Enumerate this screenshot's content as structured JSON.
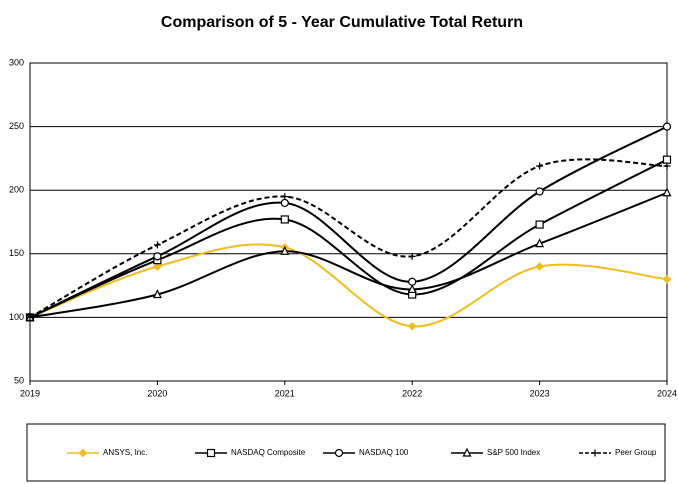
{
  "chart_data": {
    "type": "line",
    "title": "Comparison of 5 - Year Cumulative Total Return",
    "x": [
      2019,
      2020,
      2021,
      2022,
      2023,
      2024
    ],
    "xlim": [
      2019,
      2024
    ],
    "xticks": [
      2019,
      2020,
      2021,
      2022,
      2023,
      2024
    ],
    "ylim": [
      50,
      300
    ],
    "yticks": [
      50,
      100,
      150,
      200,
      250,
      300
    ],
    "grid": true,
    "series": [
      {
        "name": "ANSYS, Inc.",
        "color": "#f0be1e",
        "marker": "diamond",
        "dashed": false,
        "values": [
          100,
          140,
          155,
          93,
          140,
          130
        ]
      },
      {
        "name": "NASDAQ Composite",
        "color": "#000000",
        "marker": "square",
        "dashed": false,
        "values": [
          100,
          145,
          177,
          118,
          173,
          224
        ]
      },
      {
        "name": "NASDAQ 100",
        "color": "#000000",
        "marker": "circle",
        "dashed": false,
        "values": [
          100,
          148,
          190,
          128,
          199,
          250
        ]
      },
      {
        "name": "S&P 500 Index",
        "color": "#000000",
        "marker": "triangle",
        "dashed": false,
        "values": [
          100,
          118,
          152,
          122,
          158,
          198
        ]
      },
      {
        "name": "Peer Group",
        "color": "#000000",
        "marker": "plus",
        "dashed": true,
        "values": [
          100,
          157,
          195,
          148,
          219,
          219
        ]
      }
    ]
  }
}
